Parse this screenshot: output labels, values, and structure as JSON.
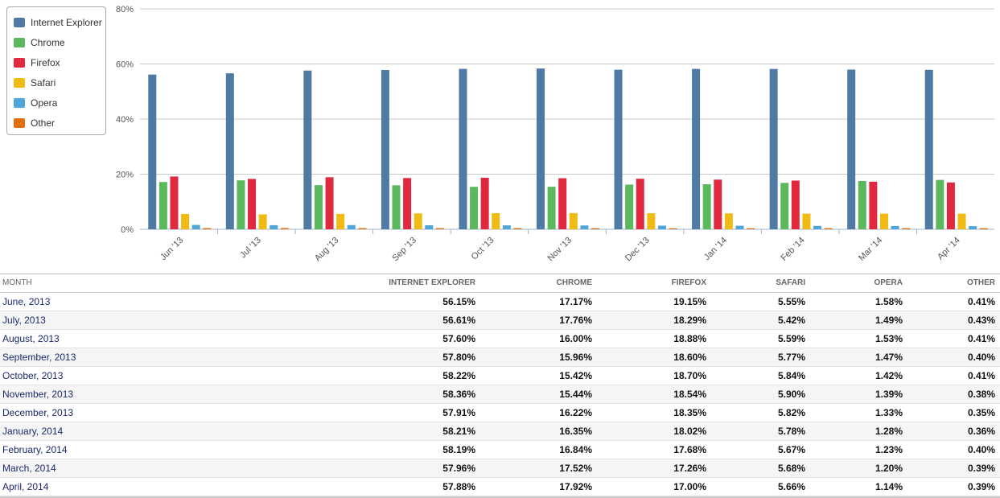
{
  "chart_data": {
    "type": "bar",
    "categories": [
      "Jun '13",
      "Jul '13",
      "Aug '13",
      "Sep '13",
      "Oct '13",
      "Nov '13",
      "Dec '13",
      "Jan '14",
      "Feb '14",
      "Mar '14",
      "Apr '14"
    ],
    "series": [
      {
        "name": "Internet Explorer",
        "color": "#4e7aa4",
        "values": [
          56.15,
          56.61,
          57.6,
          57.8,
          58.22,
          58.36,
          57.91,
          58.21,
          58.19,
          57.96,
          57.88
        ]
      },
      {
        "name": "Chrome",
        "color": "#5cb85c",
        "values": [
          17.17,
          17.76,
          16.0,
          15.96,
          15.42,
          15.44,
          16.22,
          16.35,
          16.84,
          17.52,
          17.92
        ]
      },
      {
        "name": "Firefox",
        "color": "#e0293e",
        "values": [
          19.15,
          18.29,
          18.88,
          18.6,
          18.7,
          18.54,
          18.35,
          18.02,
          17.68,
          17.26,
          17.0
        ]
      },
      {
        "name": "Safari",
        "color": "#f0bb12",
        "values": [
          5.55,
          5.42,
          5.59,
          5.77,
          5.84,
          5.9,
          5.82,
          5.78,
          5.67,
          5.68,
          5.66
        ]
      },
      {
        "name": "Opera",
        "color": "#4fa6d6",
        "values": [
          1.58,
          1.49,
          1.53,
          1.47,
          1.42,
          1.39,
          1.33,
          1.28,
          1.23,
          1.2,
          1.14
        ]
      },
      {
        "name": "Other",
        "color": "#e06f0c",
        "values": [
          0.41,
          0.43,
          0.41,
          0.4,
          0.41,
          0.38,
          0.35,
          0.36,
          0.4,
          0.39,
          0.39
        ]
      }
    ],
    "yticks": [
      "0%",
      "20%",
      "40%",
      "60%",
      "80%"
    ],
    "ylim": [
      0,
      80
    ],
    "grid": true,
    "legend_position": "top-left"
  },
  "table": {
    "headers": [
      "MONTH",
      "INTERNET EXPLORER",
      "CHROME",
      "FIREFOX",
      "SAFARI",
      "OPERA",
      "OTHER"
    ],
    "rows": [
      [
        "June, 2013",
        "56.15%",
        "17.17%",
        "19.15%",
        "5.55%",
        "1.58%",
        "0.41%"
      ],
      [
        "July, 2013",
        "56.61%",
        "17.76%",
        "18.29%",
        "5.42%",
        "1.49%",
        "0.43%"
      ],
      [
        "August, 2013",
        "57.60%",
        "16.00%",
        "18.88%",
        "5.59%",
        "1.53%",
        "0.41%"
      ],
      [
        "September, 2013",
        "57.80%",
        "15.96%",
        "18.60%",
        "5.77%",
        "1.47%",
        "0.40%"
      ],
      [
        "October, 2013",
        "58.22%",
        "15.42%",
        "18.70%",
        "5.84%",
        "1.42%",
        "0.41%"
      ],
      [
        "November, 2013",
        "58.36%",
        "15.44%",
        "18.54%",
        "5.90%",
        "1.39%",
        "0.38%"
      ],
      [
        "December, 2013",
        "57.91%",
        "16.22%",
        "18.35%",
        "5.82%",
        "1.33%",
        "0.35%"
      ],
      [
        "January, 2014",
        "58.21%",
        "16.35%",
        "18.02%",
        "5.78%",
        "1.28%",
        "0.36%"
      ],
      [
        "February, 2014",
        "58.19%",
        "16.84%",
        "17.68%",
        "5.67%",
        "1.23%",
        "0.40%"
      ],
      [
        "March, 2014",
        "57.96%",
        "17.52%",
        "17.26%",
        "5.68%",
        "1.20%",
        "0.39%"
      ],
      [
        "April, 2014",
        "57.88%",
        "17.92%",
        "17.00%",
        "5.66%",
        "1.14%",
        "0.39%"
      ]
    ]
  }
}
